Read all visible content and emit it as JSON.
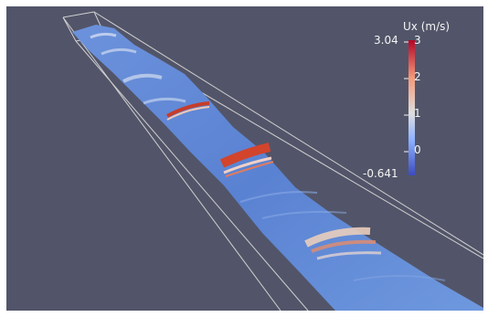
{
  "colorbar": {
    "title": "Ux (m/s)",
    "range_max": "3.04",
    "range_min": "-0.641",
    "ticks": [
      "3",
      "2",
      "1",
      "0"
    ],
    "colormap": [
      "#3b4cc0",
      "#8db0fe",
      "#dddddd",
      "#f49a7b",
      "#b40426"
    ]
  },
  "scene": {
    "background": "#525569",
    "outline_color": "#d8d8d8",
    "surface_base": "#5a86d6",
    "hot_color": "#d8482e"
  }
}
